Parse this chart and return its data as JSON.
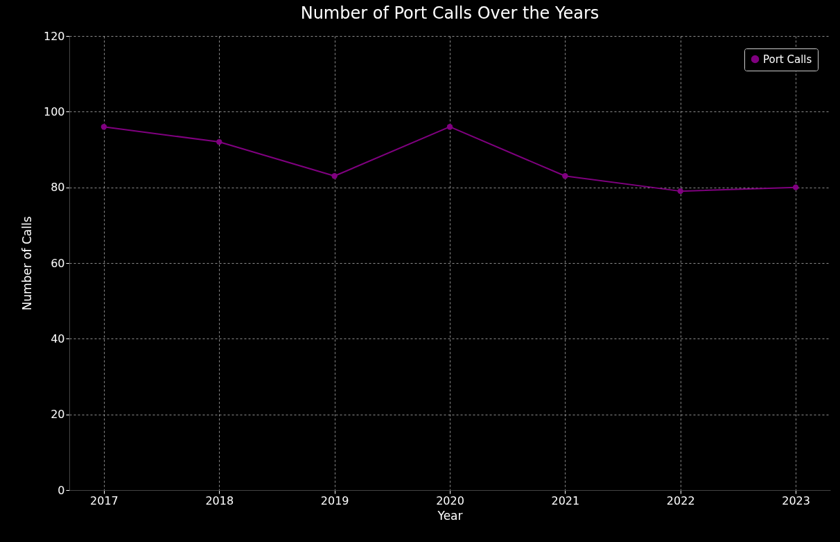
{
  "chart_data": {
    "type": "line",
    "title": "Number of Port Calls Over the Years",
    "xlabel": "Year",
    "ylabel": "Number of Calls",
    "x": [
      2017,
      2018,
      2019,
      2020,
      2021,
      2022,
      2023
    ],
    "series": [
      {
        "name": "Port Calls",
        "color": "#800080",
        "values": [
          96,
          92,
          83,
          96,
          83,
          79,
          80
        ]
      }
    ],
    "xlim": [
      2016.7,
      2023.3
    ],
    "xticks": [
      2017,
      2018,
      2019,
      2020,
      2021,
      2022,
      2023
    ],
    "ylim": [
      0,
      120
    ],
    "yticks": [
      0,
      20,
      40,
      60,
      80,
      100,
      120
    ],
    "grid": true,
    "legend": "top right",
    "marker": "circle",
    "line_style": "solid"
  }
}
